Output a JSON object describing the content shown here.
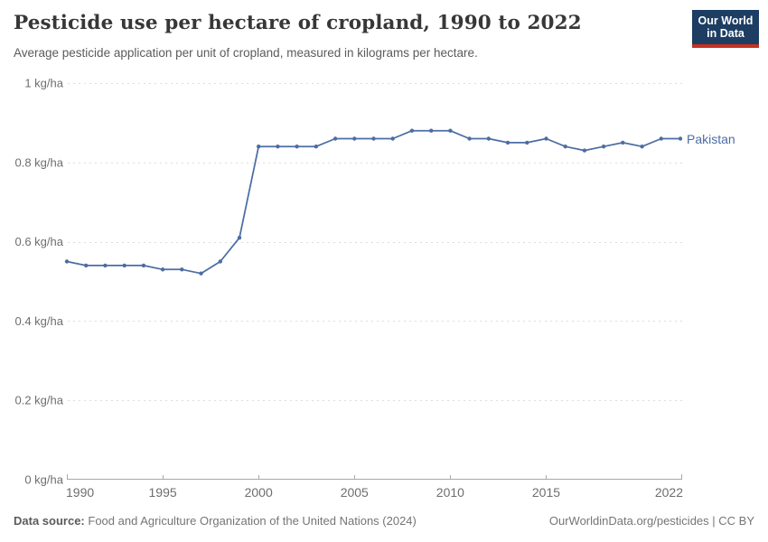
{
  "header": {
    "title": "Pesticide use per hectare of cropland, 1990 to 2022",
    "subtitle": "Average pesticide application per unit of cropland, measured in kilograms per hectare.",
    "logo": {
      "line1": "Our World",
      "line2": "in Data"
    }
  },
  "chart_data": {
    "type": "line",
    "title": "Pesticide use per hectare of cropland, 1990 to 2022",
    "unit": "kg/ha",
    "x": [
      1990,
      1991,
      1992,
      1993,
      1994,
      1995,
      1996,
      1997,
      1998,
      1999,
      2000,
      2001,
      2002,
      2003,
      2004,
      2005,
      2006,
      2007,
      2008,
      2009,
      2010,
      2011,
      2012,
      2013,
      2014,
      2015,
      2016,
      2017,
      2018,
      2019,
      2020,
      2021,
      2022
    ],
    "series": [
      {
        "name": "Pakistan",
        "color": "#4c6da3",
        "values": [
          0.55,
          0.54,
          0.54,
          0.54,
          0.54,
          0.53,
          0.53,
          0.52,
          0.55,
          0.61,
          0.84,
          0.84,
          0.84,
          0.84,
          0.86,
          0.86,
          0.86,
          0.86,
          0.88,
          0.88,
          0.88,
          0.86,
          0.86,
          0.85,
          0.85,
          0.86,
          0.84,
          0.83,
          0.84,
          0.85,
          0.84,
          0.86,
          0.86
        ]
      }
    ],
    "xlim": [
      1990,
      2022
    ],
    "ylim": [
      0,
      1
    ],
    "x_ticks": [
      1990,
      1995,
      2000,
      2005,
      2010,
      2015,
      2022
    ],
    "y_ticks": [
      {
        "value": 0,
        "label": "0 kg/ha"
      },
      {
        "value": 0.2,
        "label": "0.2 kg/ha"
      },
      {
        "value": 0.4,
        "label": "0.4 kg/ha"
      },
      {
        "value": 0.6,
        "label": "0.6 kg/ha"
      },
      {
        "value": 0.8,
        "label": "0.8 kg/ha"
      },
      {
        "value": 1,
        "label": "1 kg/ha"
      }
    ],
    "grid": "horizontal-dashed",
    "legend_position": "line-end-label"
  },
  "footer": {
    "source_label": "Data source:",
    "source_text": "Food and Agriculture Organization of the United Nations (2024)",
    "credit": "OurWorldinData.org/pesticides | CC BY"
  },
  "colors": {
    "line": "#4c6da3",
    "gridline": "#dcdcdc",
    "axis": "#a8a8a8",
    "tick_text": "#6e6e6e",
    "logo_bg": "#1d3d63",
    "logo_stripe": "#c7311f",
    "title_text": "#373737",
    "subtitle_text": "#5b5b5b"
  }
}
